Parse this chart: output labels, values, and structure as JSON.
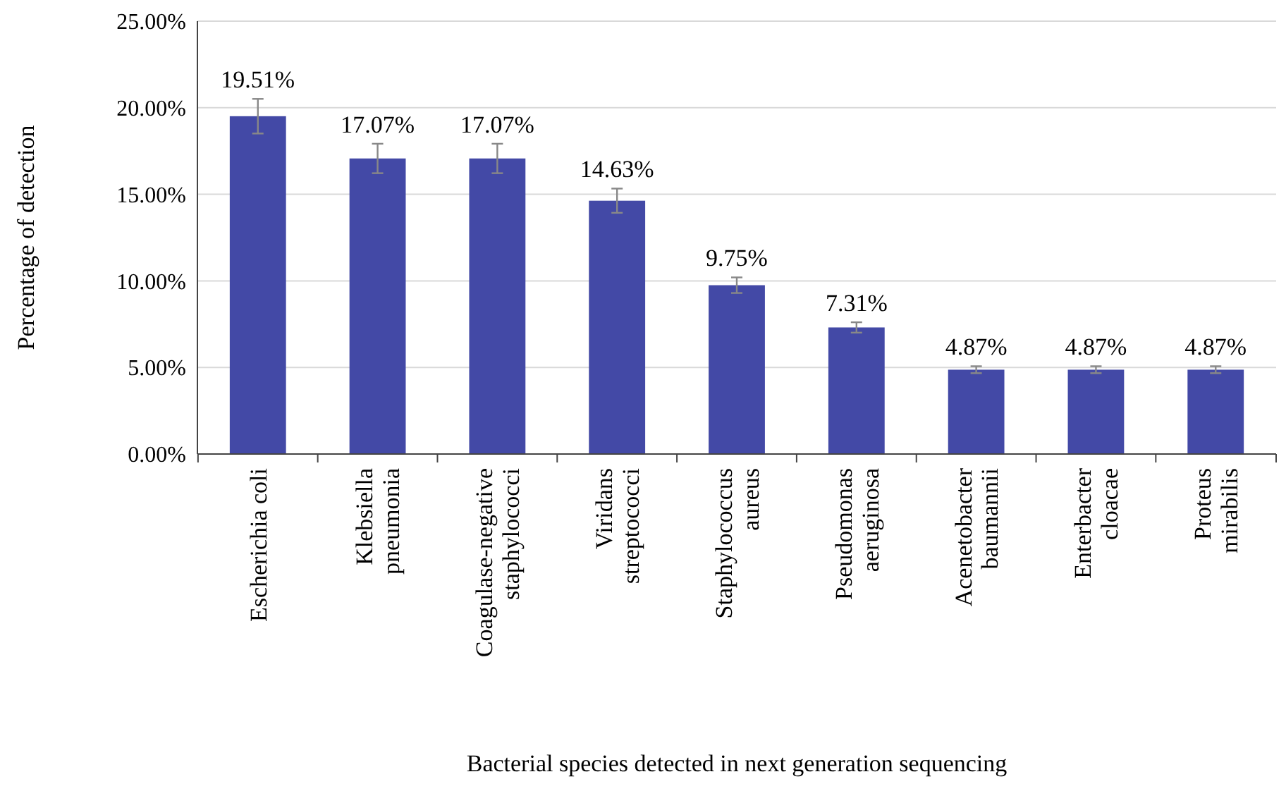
{
  "chart_data": {
    "type": "bar",
    "xlabel": "Bacterial species detected in next generation sequencing",
    "ylabel": "Percentage of detection",
    "categories": [
      "Escherichia coli",
      "Klebsiella\npneumonia",
      "Coagulase-negative\nstaphylococci",
      "Viridans\nstreptococci",
      "Staphylococcus\naureus",
      "Pseudomonas\naeruginosa",
      "Acenetobacter\nbaumannii",
      "Enterbacter\ncloacae",
      "Proteus\nmirabilis"
    ],
    "values": [
      19.51,
      17.07,
      17.07,
      14.63,
      9.75,
      7.31,
      4.87,
      4.87,
      4.87
    ],
    "value_labels": [
      "19.51%",
      "17.07%",
      "17.07%",
      "14.63%",
      "9.75%",
      "7.31%",
      "4.87%",
      "4.87%",
      "4.87%"
    ],
    "errors": [
      1,
      0.85,
      0.85,
      0.7,
      0.45,
      0.3,
      0.2,
      0.2,
      0.2
    ],
    "color": "#4349a6",
    "ylim": [
      0,
      25
    ],
    "yticks": [
      {
        "value": 0,
        "label": "0.00%"
      },
      {
        "value": 5,
        "label": "5.00%"
      },
      {
        "value": 10,
        "label": "10.00%"
      },
      {
        "value": 15,
        "label": "15.00%"
      },
      {
        "value": 20,
        "label": "20.00%"
      },
      {
        "value": 25,
        "label": "25.00%"
      }
    ],
    "grid": "y"
  }
}
